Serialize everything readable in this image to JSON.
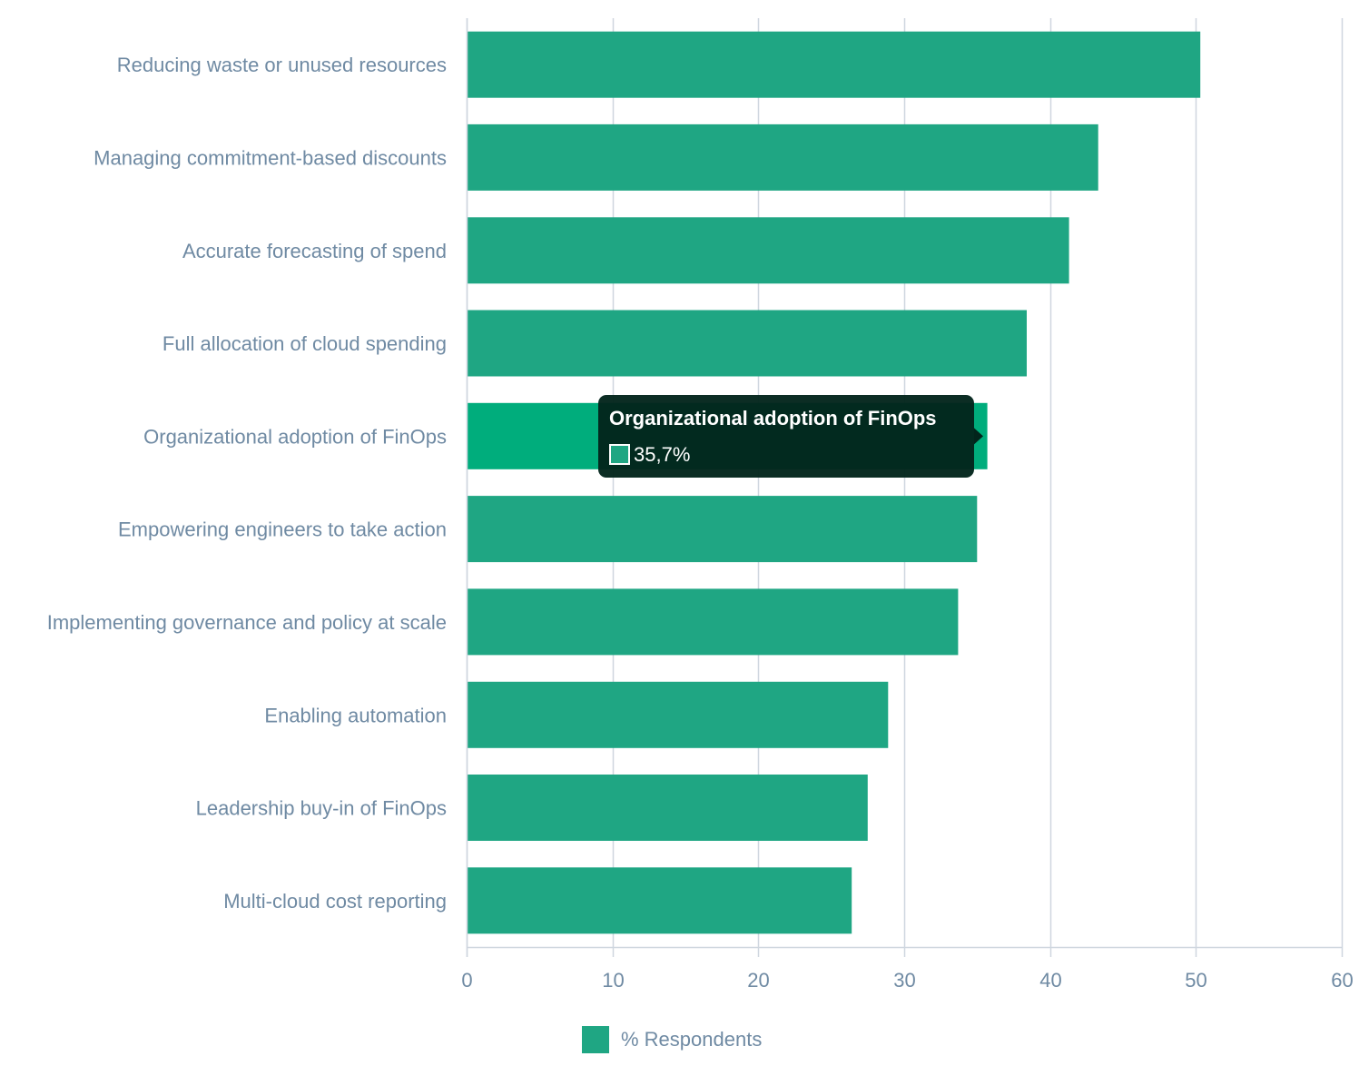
{
  "chart_data": {
    "type": "bar",
    "orientation": "horizontal",
    "categories": [
      "Reducing waste or unused resources",
      "Managing commitment-based discounts",
      "Accurate forecasting of spend",
      "Full allocation of cloud spending",
      "Organizational adoption of FinOps",
      "Empowering engineers to take action",
      "Implementing governance and policy at scale",
      "Enabling automation",
      "Leadership buy-in of FinOps",
      "Multi-cloud cost reporting"
    ],
    "series": [
      {
        "name": "% Respondents",
        "values": [
          50.3,
          43.3,
          41.3,
          38.4,
          35.7,
          35.0,
          33.7,
          28.9,
          27.5,
          26.4
        ]
      }
    ],
    "xlim": [
      0,
      60
    ],
    "xticks": [
      0,
      10,
      20,
      30,
      40,
      50,
      60
    ],
    "grid": "vertical",
    "legend": "bottom-center",
    "colors": {
      "bar": "#1fa683",
      "bar_highlight": "#00ad7c",
      "grid": "#cfd6df",
      "label": "#6f8aa3",
      "tooltip_bg": "#02241b"
    },
    "tooltip": {
      "category_index": 4,
      "title": "Organizational adoption of FinOps",
      "value_text": "35,7%"
    }
  }
}
